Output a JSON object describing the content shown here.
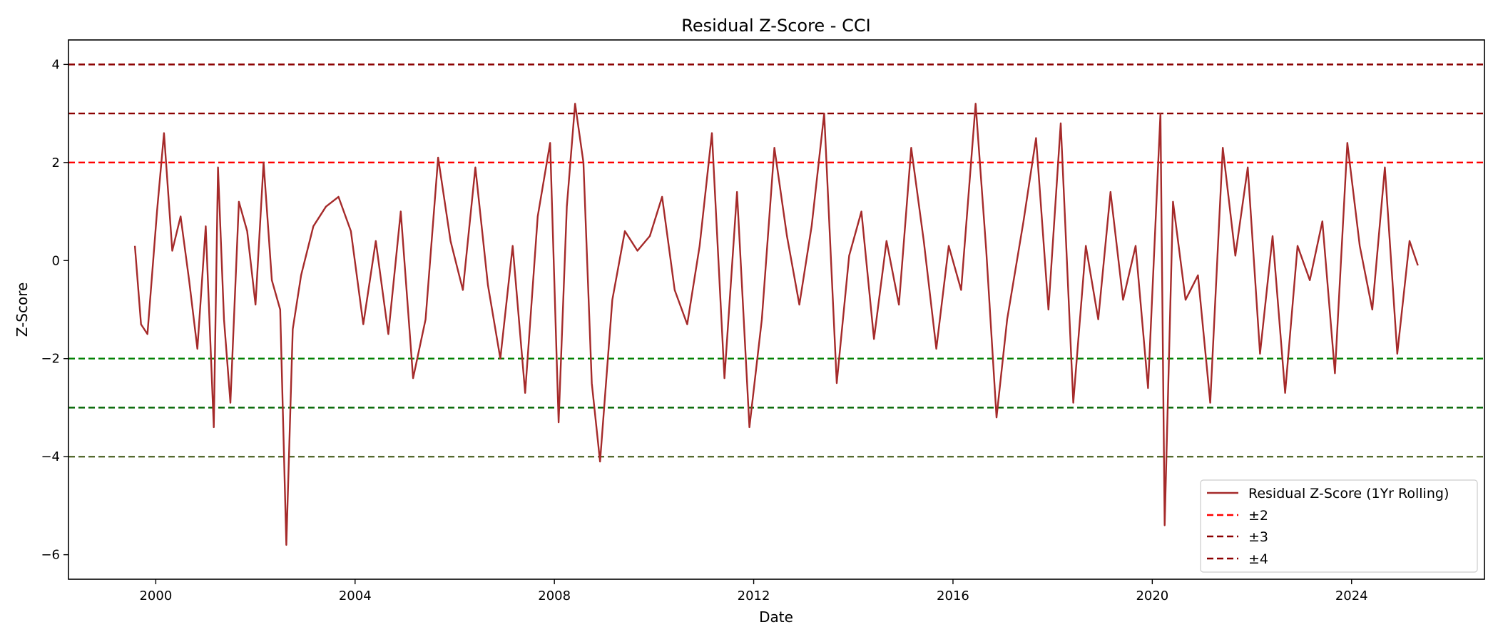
{
  "chart_data": {
    "type": "line",
    "title": "Residual Z-Score - CCI",
    "xlabel": "Date",
    "ylabel": "Z-Score",
    "xlim": [
      "1998-04-01",
      "2026-09-01"
    ],
    "ylim": [
      -6.5,
      4.5
    ],
    "x_ticks": [
      "2000-01-01",
      "2004-01-01",
      "2008-01-01",
      "2012-01-01",
      "2016-01-01",
      "2020-01-01",
      "2024-01-01"
    ],
    "x_tick_labels": [
      "2000",
      "2004",
      "2008",
      "2012",
      "2016",
      "2020",
      "2024"
    ],
    "y_ticks": [
      4,
      2,
      0,
      -2,
      -4,
      -6
    ],
    "y_tick_labels": [
      "4",
      "2",
      "0",
      "−2",
      "−4",
      "−6"
    ],
    "grid": false,
    "legend_position": "lower-right",
    "series": [
      {
        "name": "Residual Z-Score (1Yr Rolling)",
        "color": "#a52a2a",
        "x_dates": [
          "1999-08-01",
          "1999-09-15",
          "1999-11-01",
          "2000-01-10",
          "2000-03-01",
          "2000-05-01",
          "2000-07-01",
          "2000-09-01",
          "2000-11-01",
          "2001-01-01",
          "2001-03-01",
          "2001-04-01",
          "2001-05-15",
          "2001-07-01",
          "2001-09-01",
          "2001-11-01",
          "2002-01-01",
          "2002-03-01",
          "2002-05-01",
          "2002-07-01",
          "2002-08-15",
          "2002-10-01",
          "2002-12-01",
          "2003-03-01",
          "2003-06-01",
          "2003-09-01",
          "2003-12-01",
          "2004-03-01",
          "2004-06-01",
          "2004-09-01",
          "2004-12-01",
          "2005-03-01",
          "2005-06-01",
          "2005-09-01",
          "2005-12-01",
          "2006-03-01",
          "2006-06-01",
          "2006-09-01",
          "2006-12-01",
          "2007-03-01",
          "2007-06-01",
          "2007-09-01",
          "2007-12-01",
          "2008-02-01",
          "2008-04-01",
          "2008-06-01",
          "2008-08-01",
          "2008-10-01",
          "2008-12-01",
          "2009-03-01",
          "2009-06-01",
          "2009-09-01",
          "2009-12-01",
          "2010-03-01",
          "2010-06-01",
          "2010-09-01",
          "2010-12-01",
          "2011-03-01",
          "2011-06-01",
          "2011-09-01",
          "2011-12-01",
          "2012-03-01",
          "2012-06-01",
          "2012-09-01",
          "2012-12-01",
          "2013-03-01",
          "2013-06-01",
          "2013-09-01",
          "2013-12-01",
          "2014-03-01",
          "2014-06-01",
          "2014-09-01",
          "2014-12-01",
          "2015-03-01",
          "2015-06-01",
          "2015-09-01",
          "2015-12-01",
          "2016-03-01",
          "2016-06-15",
          "2016-09-01",
          "2016-11-15",
          "2017-02-01",
          "2017-06-01",
          "2017-09-01",
          "2017-12-01",
          "2018-03-01",
          "2018-06-01",
          "2018-09-01",
          "2018-12-01",
          "2019-03-01",
          "2019-06-01",
          "2019-09-01",
          "2019-12-01",
          "2020-03-01",
          "2020-04-01",
          "2020-06-01",
          "2020-09-01",
          "2020-12-01",
          "2021-03-01",
          "2021-06-01",
          "2021-09-01",
          "2021-12-01",
          "2022-03-01",
          "2022-06-01",
          "2022-09-01",
          "2022-12-01",
          "2023-03-01",
          "2023-06-01",
          "2023-09-01",
          "2023-12-01",
          "2024-03-01",
          "2024-06-01",
          "2024-09-01",
          "2024-12-01",
          "2025-03-01",
          "2025-05-01"
        ],
        "values": [
          0.3,
          -1.3,
          -1.5,
          1.0,
          2.6,
          0.2,
          0.9,
          -0.4,
          -1.8,
          0.7,
          -3.4,
          1.9,
          -1.2,
          -2.9,
          1.2,
          0.6,
          -0.9,
          2.0,
          -0.4,
          -1.0,
          -5.8,
          -1.4,
          -0.3,
          0.7,
          1.1,
          1.3,
          0.6,
          -1.3,
          0.4,
          -1.5,
          1.0,
          -2.4,
          -1.2,
          2.1,
          0.4,
          -0.6,
          1.9,
          -0.5,
          -2.0,
          0.3,
          -2.7,
          0.9,
          2.4,
          -3.3,
          1.1,
          3.2,
          2.0,
          -2.5,
          -4.1,
          -0.8,
          0.6,
          0.2,
          0.5,
          1.3,
          -0.6,
          -1.3,
          0.3,
          2.6,
          -2.4,
          1.4,
          -3.4,
          -1.2,
          2.3,
          0.5,
          -0.9,
          0.7,
          3.0,
          -2.5,
          0.1,
          1.0,
          -1.6,
          0.4,
          -0.9,
          2.3,
          0.4,
          -1.8,
          0.3,
          -0.6,
          3.2,
          0.2,
          -3.2,
          -1.2,
          0.8,
          2.5,
          -1.0,
          2.8,
          -2.9,
          0.3,
          -1.2,
          1.4,
          -0.8,
          0.3,
          -2.6,
          3.0,
          -5.4,
          1.2,
          -0.8,
          -0.3,
          -2.9,
          2.3,
          0.1,
          1.9,
          -1.9,
          0.5,
          -2.7,
          0.3,
          -0.4,
          0.8,
          -2.3,
          2.4,
          0.3,
          -1.0,
          1.9,
          -1.9,
          0.4,
          -0.1
        ]
      },
      {
        "name": "±2",
        "color": "#ff0000",
        "level": 2
      },
      {
        "name": "±3",
        "color": "#8b0000",
        "level": 3
      },
      {
        "name": "±4",
        "color": "#8b0000",
        "level": 4
      }
    ],
    "negative_threshold_colors": {
      "-2": "#008000",
      "-3": "#006400",
      "-4": "#556b2f"
    }
  }
}
